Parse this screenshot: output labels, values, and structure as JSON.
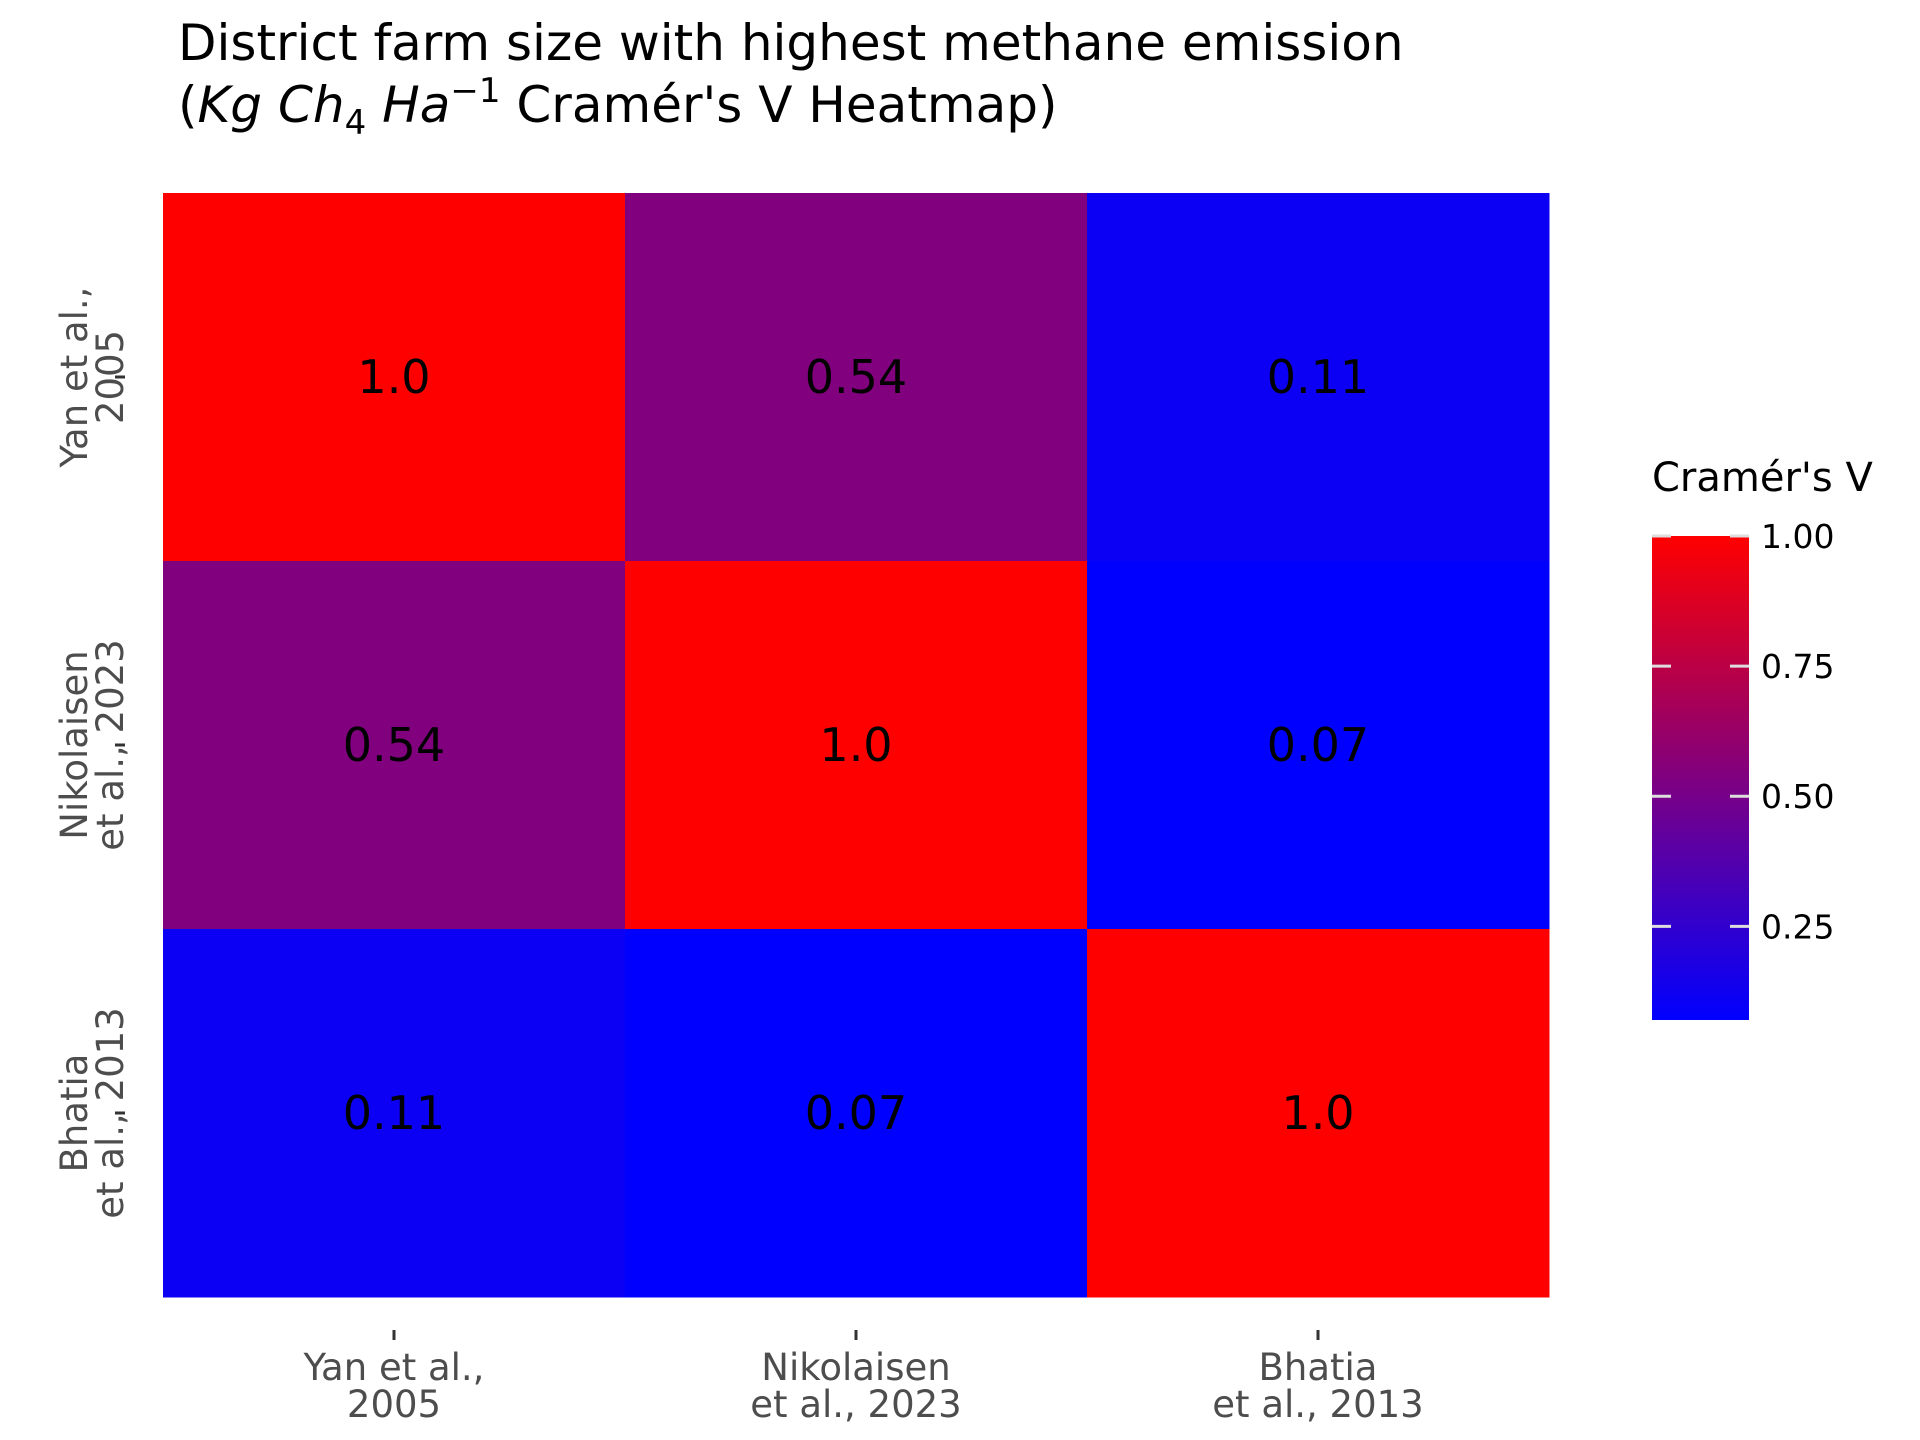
{
  "chart_data": {
    "type": "heatmap",
    "title_line1": "District farm size with highest methane emission",
    "title_line2": {
      "open": "(",
      "kg": "Kg",
      "ch": "Ch",
      "ch_sub": "4",
      "ha": "Ha",
      "ha_sup": "−1",
      "rest": " Cramér's V Heatmap)"
    },
    "x_categories": [
      [
        "Yan et al.,",
        "2005"
      ],
      [
        "Nikolaisen",
        "et al., 2023"
      ],
      [
        "Bhatia",
        "et al., 2013"
      ]
    ],
    "y_categories": [
      [
        "Yan et al.,",
        "2005"
      ],
      [
        "Nikolaisen",
        "et al., 2023"
      ],
      [
        "Bhatia",
        "et al., 2013"
      ]
    ],
    "values": [
      [
        1.0,
        0.54,
        0.11
      ],
      [
        0.54,
        1.0,
        0.07
      ],
      [
        0.11,
        0.07,
        1.0
      ]
    ],
    "cell_labels": [
      [
        "1.0",
        "0.54",
        "0.11"
      ],
      [
        "0.54",
        "1.0",
        "0.07"
      ],
      [
        "0.11",
        "0.07",
        "1.0"
      ]
    ],
    "colorscale": {
      "low": "#0000ff",
      "high": "#ff0000",
      "min": 0.07,
      "max": 1.0
    },
    "legend": {
      "title": "Cramér's V",
      "ticks": [
        1.0,
        0.75,
        0.5,
        0.25
      ],
      "tick_labels": [
        "1.00",
        "0.75",
        "0.50",
        "0.25"
      ],
      "placement": "right"
    }
  }
}
